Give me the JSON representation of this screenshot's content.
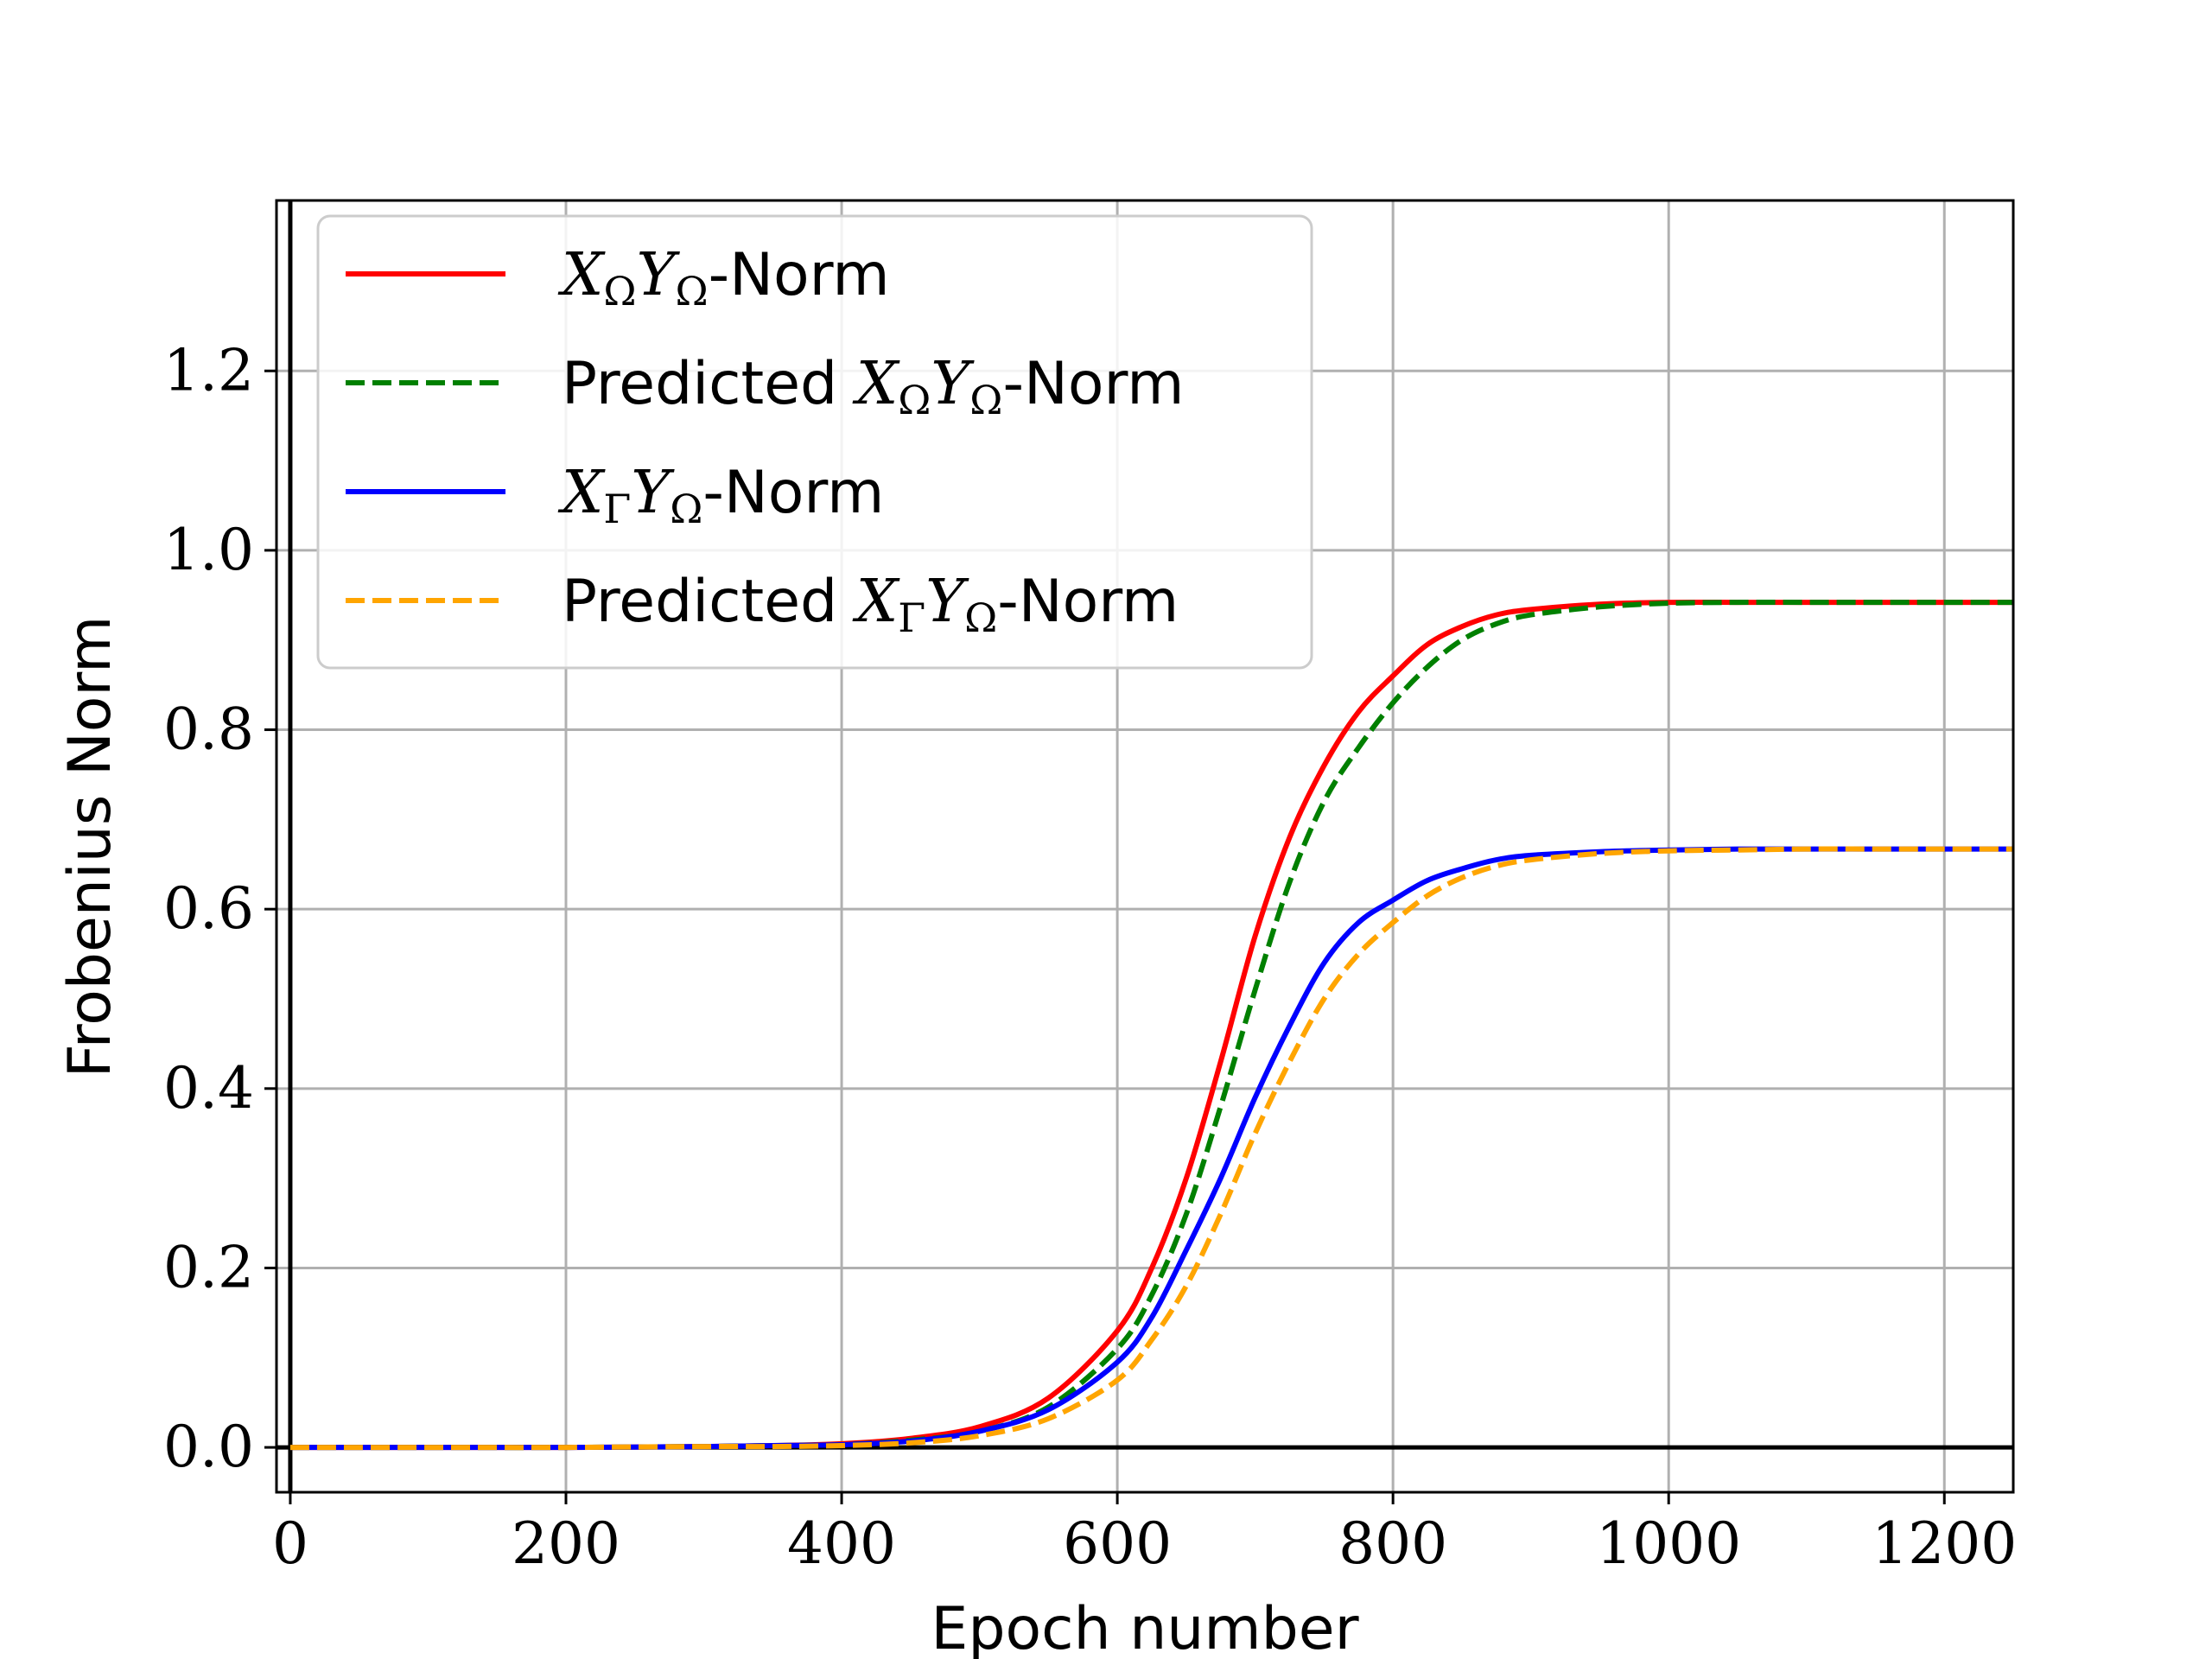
{
  "chart_data": {
    "type": "line",
    "title": "",
    "xlabel": "Epoch number",
    "ylabel": "Frobenius Norm",
    "xlim": [
      -10,
      1250
    ],
    "ylim": [
      -0.05,
      1.39
    ],
    "xticks": [
      0,
      200,
      400,
      600,
      800,
      1000,
      1200
    ],
    "yticks": [
      0.0,
      0.2,
      0.4,
      0.6,
      0.8,
      1.0,
      1.2
    ],
    "xtick_labels": [
      "0",
      "200",
      "400",
      "600",
      "800",
      "1000",
      "1200"
    ],
    "ytick_labels": [
      "0.0",
      "0.2",
      "0.4",
      "0.6",
      "0.8",
      "1.0",
      "1.2"
    ],
    "grid": true,
    "legend_position": "top-left",
    "reference_lines": {
      "horizontal_y": 0.0,
      "vertical_x": 0
    },
    "series": [
      {
        "legend": {
          "prefix": "",
          "X": "X",
          "Xsub": "Ω",
          "Y": "Y",
          "Ysub": "Ω",
          "suffix": "-Norm"
        },
        "color": "#ff0000",
        "dash": "solid",
        "x": [
          0,
          100,
          200,
          300,
          350,
          400,
          450,
          500,
          550,
          600,
          625,
          650,
          675,
          700,
          725,
          750,
          775,
          800,
          825,
          850,
          875,
          900,
          950,
          1000,
          1050,
          1100,
          1150,
          1200,
          1250
        ],
        "y": [
          0.0,
          0.0,
          0.0,
          0.001,
          0.002,
          0.004,
          0.01,
          0.023,
          0.055,
          0.13,
          0.2,
          0.3,
          0.43,
          0.57,
          0.68,
          0.76,
          0.82,
          0.86,
          0.895,
          0.915,
          0.928,
          0.934,
          0.94,
          0.942,
          0.942,
          0.942,
          0.942,
          0.942,
          0.942
        ]
      },
      {
        "legend": {
          "prefix": "Predicted ",
          "X": "X",
          "Xsub": "Ω",
          "Y": "Y",
          "Ysub": "Ω",
          "suffix": "-Norm"
        },
        "color": "#008000",
        "dash": "dashed",
        "x": [
          0,
          100,
          200,
          300,
          350,
          400,
          450,
          500,
          550,
          600,
          625,
          650,
          675,
          700,
          725,
          750,
          775,
          800,
          825,
          850,
          875,
          900,
          950,
          1000,
          1050,
          1100,
          1150,
          1200,
          1250
        ],
        "y": [
          0.0,
          0.0,
          0.0,
          0.001,
          0.002,
          0.003,
          0.008,
          0.018,
          0.045,
          0.11,
          0.17,
          0.26,
          0.38,
          0.51,
          0.63,
          0.72,
          0.78,
          0.83,
          0.87,
          0.9,
          0.918,
          0.928,
          0.937,
          0.941,
          0.942,
          0.942,
          0.942,
          0.942,
          0.942
        ]
      },
      {
        "legend": {
          "prefix": "",
          "X": "X",
          "Xsub": "Γ",
          "Y": "Y",
          "Ysub": "Ω",
          "suffix": "-Norm"
        },
        "color": "#0000ff",
        "dash": "solid",
        "x": [
          0,
          100,
          200,
          300,
          350,
          400,
          450,
          500,
          550,
          600,
          625,
          650,
          675,
          700,
          725,
          750,
          775,
          800,
          825,
          850,
          875,
          900,
          950,
          1000,
          1050,
          1100,
          1150,
          1200,
          1250
        ],
        "y": [
          0.0,
          0.0,
          0.0,
          0.001,
          0.002,
          0.003,
          0.007,
          0.018,
          0.042,
          0.095,
          0.145,
          0.22,
          0.3,
          0.39,
          0.47,
          0.54,
          0.585,
          0.61,
          0.632,
          0.645,
          0.655,
          0.66,
          0.664,
          0.666,
          0.667,
          0.667,
          0.667,
          0.667,
          0.667
        ]
      },
      {
        "legend": {
          "prefix": "Predicted ",
          "X": "X",
          "Xsub": "Γ",
          "Y": "Y",
          "Ysub": "Ω",
          "suffix": "-Norm"
        },
        "color": "#ffa500",
        "dash": "dashed",
        "x": [
          0,
          100,
          200,
          300,
          350,
          400,
          450,
          500,
          550,
          600,
          625,
          650,
          675,
          700,
          725,
          750,
          775,
          800,
          825,
          850,
          875,
          900,
          950,
          1000,
          1050,
          1100,
          1150,
          1200,
          1250
        ],
        "y": [
          0.0,
          0.0,
          0.0,
          0.001,
          0.001,
          0.002,
          0.005,
          0.013,
          0.032,
          0.075,
          0.12,
          0.18,
          0.26,
          0.35,
          0.43,
          0.5,
          0.55,
          0.585,
          0.615,
          0.635,
          0.648,
          0.655,
          0.662,
          0.665,
          0.666,
          0.667,
          0.667,
          0.667,
          0.667
        ]
      }
    ]
  }
}
